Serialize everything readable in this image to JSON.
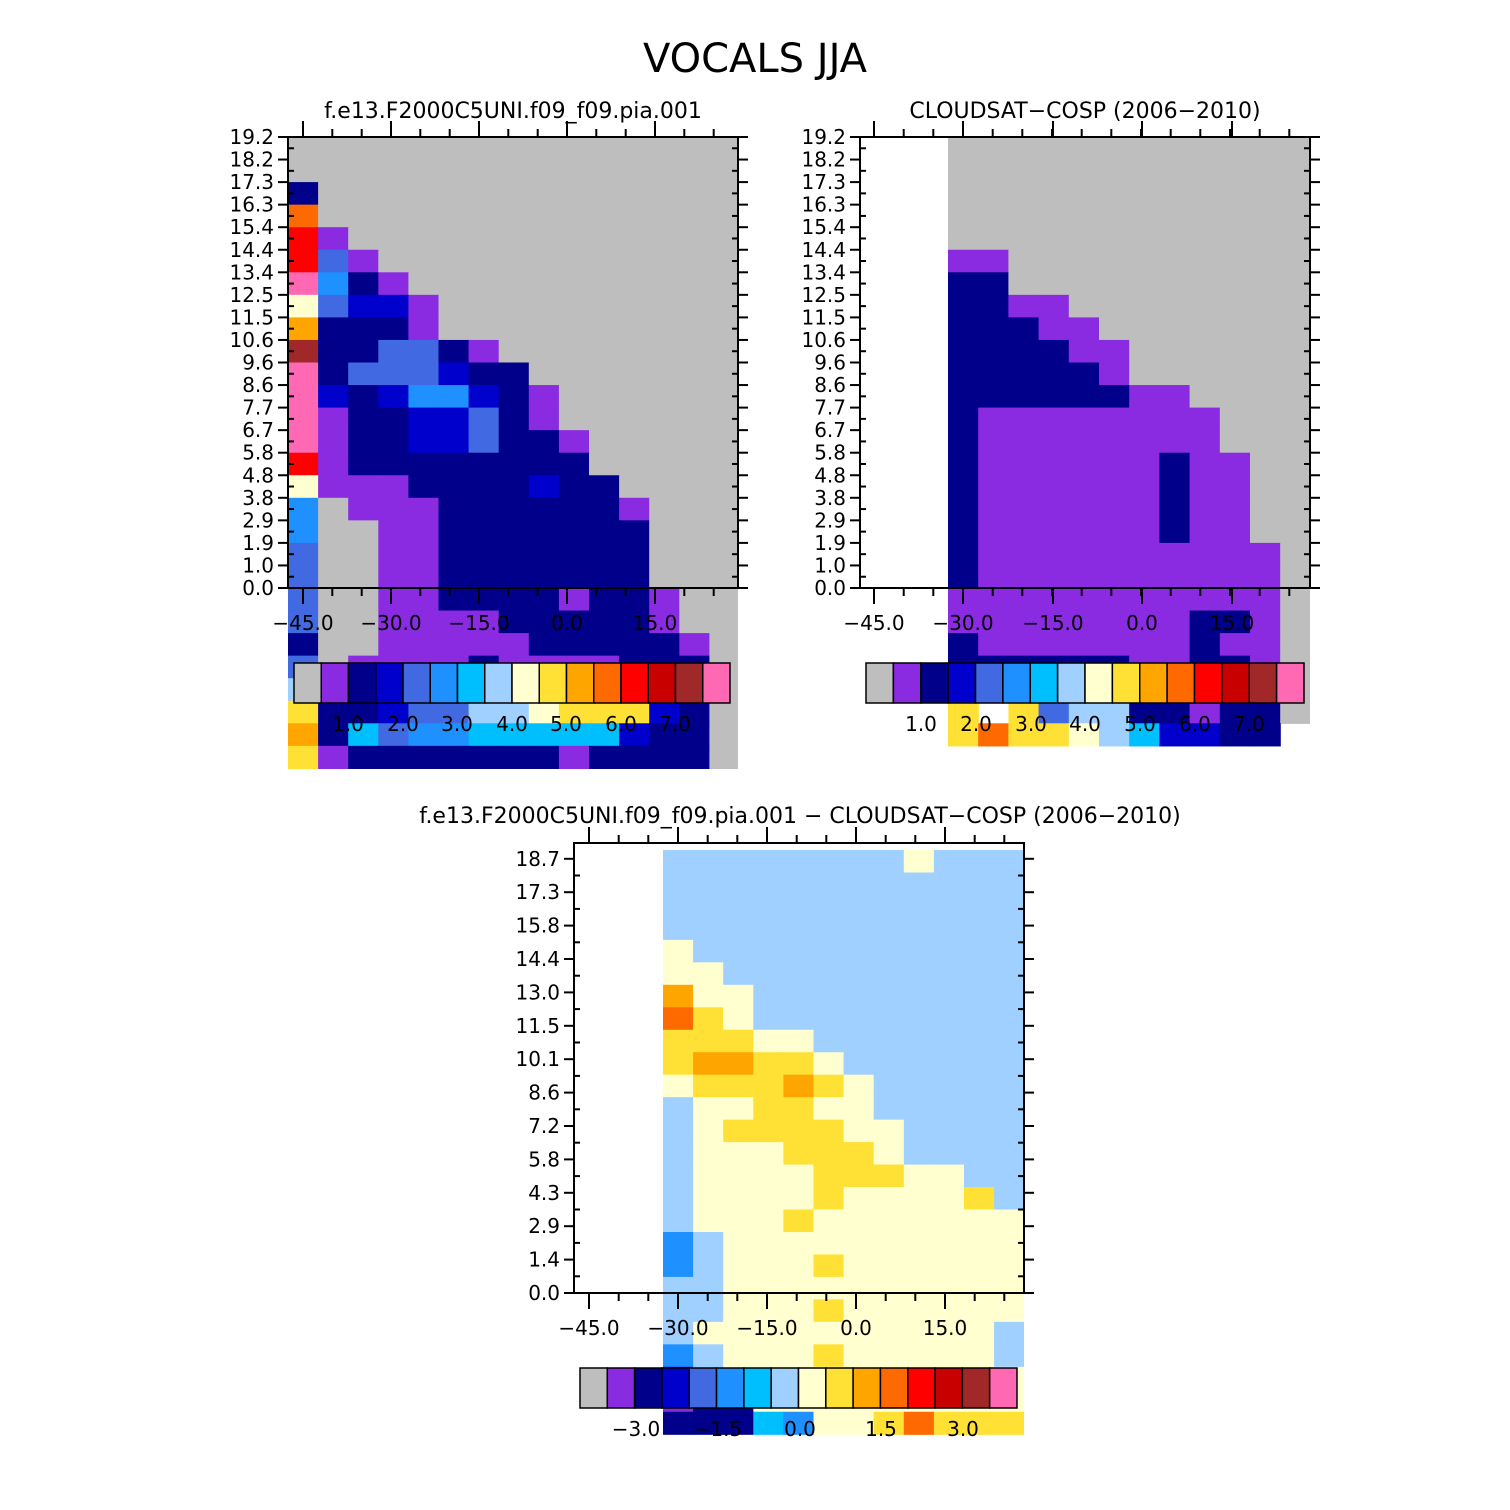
{
  "title": "VOCALS JJA",
  "chart_data": [
    {
      "type": "heatmap",
      "title": "f.e13.F2000C5UNI.f09_f09.pia.001",
      "xticklabels": [
        "−45.0",
        "−30.0",
        "−15.0",
        "0.0",
        "15.0"
      ],
      "yticklabels": [
        "0.0",
        "1.0",
        "1.9",
        "2.9",
        "3.8",
        "4.8",
        "5.8",
        "6.7",
        "7.7",
        "8.6",
        "9.6",
        "10.6",
        "11.5",
        "12.5",
        "13.4",
        "14.4",
        "15.4",
        "16.3",
        "17.3",
        "18.2",
        "19.2"
      ],
      "colorbar_labels": [
        "1.0",
        "2.0",
        "3.0",
        "4.0",
        "5.0",
        "6.0",
        "7.0"
      ],
      "colorbar_colors": [
        "#BEBEBE",
        "#8A2BE2",
        "#00008B",
        "#0000CD",
        "#4169E1",
        "#1E90FF",
        "#00BFFF",
        "#A0D0FF",
        "#FFFFD0",
        "#FFE135",
        "#FFA500",
        "#FF6A00",
        "#FF0000",
        "#C80000",
        "#A02828",
        "#FF69B4"
      ]
    },
    {
      "type": "heatmap",
      "title": "CLOUDSAT−COSP (2006−2010)",
      "xticklabels": [
        "−45.0",
        "−30.0",
        "−15.0",
        "0.0",
        "15.0"
      ],
      "yticklabels": [
        "0.0",
        "1.0",
        "1.9",
        "2.9",
        "3.8",
        "4.8",
        "5.8",
        "6.7",
        "7.7",
        "8.6",
        "9.6",
        "10.6",
        "11.5",
        "12.5",
        "13.4",
        "14.4",
        "15.4",
        "16.3",
        "17.3",
        "18.2",
        "19.2"
      ],
      "colorbar_labels": [
        "1.0",
        "2.0",
        "3.0",
        "4.0",
        "5.0",
        "6.0",
        "7.0"
      ],
      "colorbar_colors": [
        "#BEBEBE",
        "#8A2BE2",
        "#00008B",
        "#0000CD",
        "#4169E1",
        "#1E90FF",
        "#00BFFF",
        "#A0D0FF",
        "#FFFFD0",
        "#FFE135",
        "#FFA500",
        "#FF6A00",
        "#FF0000",
        "#C80000",
        "#A02828",
        "#FF69B4"
      ]
    },
    {
      "type": "heatmap",
      "title": "f.e13.F2000C5UNI.f09_f09.pia.001 − CLOUDSAT−COSP (2006−2010)",
      "xticklabels": [
        "−45.0",
        "−30.0",
        "−15.0",
        "0.0",
        "15.0"
      ],
      "yticklabels": [
        "0.0",
        "1.4",
        "2.9",
        "4.3",
        "5.8",
        "7.2",
        "8.6",
        "10.1",
        "11.5",
        "13.0",
        "14.4",
        "15.8",
        "17.3",
        "18.7"
      ],
      "colorbar_labels": [
        "−3.0",
        "−1.5",
        "0.0",
        "1.5",
        "3.0"
      ],
      "colorbar_colors": [
        "#BEBEBE",
        "#8A2BE2",
        "#00008B",
        "#0000CD",
        "#4169E1",
        "#1E90FF",
        "#00BFFF",
        "#A0D0FF",
        "#FFFFD0",
        "#FFE135",
        "#FFA500",
        "#FF6A00",
        "#FF0000",
        "#C80000",
        "#A02828",
        "#FF69B4"
      ]
    }
  ]
}
